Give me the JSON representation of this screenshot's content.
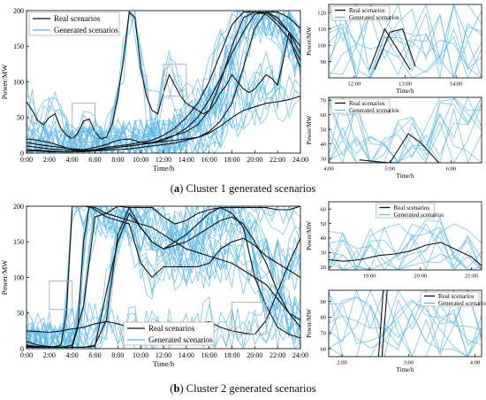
{
  "captions": [
    {
      "letter": "a",
      "text": " Cluster 1 generated scenarios"
    },
    {
      "letter": "b",
      "text": " Cluster 2 generated scenarios"
    }
  ],
  "colors": {
    "real": "#111111",
    "generated": "#5fb8e6",
    "zoom_box": "#b3b3b3",
    "axis": "#000000"
  },
  "chart_data": [
    {
      "id": "a-main",
      "type": "line",
      "xlabel": "Time/h",
      "ylabel": "Power/MW",
      "xlim": [
        0,
        24
      ],
      "ylim": [
        0,
        200
      ],
      "xticks": [
        0,
        2,
        4,
        6,
        8,
        10,
        12,
        14,
        16,
        18,
        20,
        22,
        24
      ],
      "xtick_labels": [
        "0:00",
        "2:00",
        "4:00",
        "6:00",
        "8:00",
        "10:00",
        "12:00",
        "14:00",
        "16:00",
        "18:00",
        "20:00",
        "22:00",
        "24:00"
      ],
      "yticks": [
        0,
        50,
        100,
        150,
        200
      ],
      "ytick_labels": [
        "0",
        "50",
        "100",
        "150",
        "200"
      ],
      "legend": {
        "position": "top-left",
        "entries": [
          "Real scenarios",
          "Generated scenarios"
        ]
      },
      "zoom_boxes": [
        {
          "x": [
            4,
            6
          ],
          "y": [
            15,
            70
          ]
        },
        {
          "x": [
            12,
            14
          ],
          "y": [
            80,
            125
          ]
        }
      ],
      "real_series": [
        {
          "x": [
            0,
            0.5,
            1,
            1.5,
            2,
            2.5,
            3,
            3.5,
            4,
            4.5,
            5,
            5.5,
            6,
            6.5,
            7,
            7.5,
            8,
            8.5,
            9,
            9.5,
            10,
            10.5,
            11,
            11.5,
            12,
            12.5,
            13,
            13.5,
            14,
            14.5,
            15,
            15.5,
            16,
            16.5,
            17,
            17.5,
            18,
            18.5,
            19,
            19.5,
            20,
            20.5,
            21,
            21.5,
            22,
            22.5,
            23,
            23.5,
            24
          ],
          "y": [
            72,
            60,
            45,
            40,
            50,
            55,
            35,
            25,
            20,
            28,
            45,
            48,
            30,
            20,
            22,
            40,
            80,
            130,
            198,
            190,
            120,
            80,
            60,
            55,
            85,
            110,
            95,
            80,
            70,
            65,
            60,
            55,
            60,
            70,
            85,
            95,
            110,
            100,
            90,
            85,
            90,
            100,
            110,
            105,
            95,
            130,
            170,
            140,
            120
          ]
        },
        {
          "x": [
            0,
            1,
            2,
            3,
            4,
            5,
            6,
            7,
            8,
            9,
            10,
            11,
            12,
            13,
            14,
            15,
            16,
            17,
            18,
            19,
            20,
            21,
            22,
            23,
            24
          ],
          "y": [
            15,
            12,
            10,
            8,
            6,
            5,
            8,
            12,
            18,
            20,
            15,
            14,
            20,
            25,
            30,
            40,
            60,
            100,
            150,
            190,
            198,
            198,
            185,
            170,
            150
          ]
        },
        {
          "x": [
            0,
            1,
            2,
            3,
            4,
            5,
            6,
            7,
            8,
            9,
            10,
            11,
            12,
            13,
            14,
            15,
            16,
            17,
            18,
            19,
            20,
            21,
            22,
            23,
            24
          ],
          "y": [
            5,
            4,
            3,
            2,
            2,
            3,
            4,
            6,
            8,
            10,
            12,
            15,
            18,
            25,
            35,
            50,
            75,
            105,
            140,
            170,
            195,
            198,
            190,
            170,
            140
          ]
        },
        {
          "x": [
            0,
            1,
            2,
            3,
            4,
            5,
            6,
            7,
            8,
            9,
            10,
            11,
            12,
            13,
            14,
            15,
            16,
            17,
            18,
            19,
            20,
            21,
            22,
            23,
            24
          ],
          "y": [
            10,
            8,
            6,
            5,
            4,
            4,
            5,
            6,
            8,
            10,
            12,
            14,
            16,
            18,
            20,
            22,
            30,
            45,
            70,
            120,
            175,
            198,
            198,
            190,
            175
          ]
        },
        {
          "x": [
            0,
            1,
            2,
            3,
            4,
            5,
            6,
            7,
            8,
            9,
            10,
            11,
            12,
            13,
            14,
            15,
            16,
            17,
            18,
            19,
            20,
            21,
            22,
            23,
            24
          ],
          "y": [
            3,
            3,
            2,
            2,
            2,
            2,
            3,
            4,
            5,
            6,
            8,
            10,
            12,
            14,
            18,
            22,
            28,
            38,
            50,
            60,
            65,
            70,
            72,
            75,
            80
          ]
        },
        {
          "x": [
            0,
            1,
            2,
            3,
            4,
            5,
            6,
            7,
            8,
            9,
            10,
            11,
            12,
            13,
            14,
            15,
            16,
            17,
            18,
            19,
            20,
            21,
            22,
            23,
            24
          ],
          "y": [
            20,
            18,
            15,
            10,
            5,
            4,
            5,
            8,
            10,
            12,
            15,
            18,
            25,
            35,
            50,
            70,
            100,
            140,
            180,
            198,
            198,
            195,
            180,
            160,
            130
          ]
        }
      ]
    },
    {
      "id": "a-zoom-1",
      "type": "line",
      "xlabel": "Time/h",
      "ylabel": "Power/MW",
      "xlim": [
        11.5,
        14.5
      ],
      "ylim": [
        80,
        125
      ],
      "xticks": [
        12,
        13,
        14
      ],
      "xtick_labels": [
        "12:00",
        "13:00",
        "14:00"
      ],
      "yticks": [
        90,
        100,
        110,
        120
      ],
      "ytick_labels": [
        "90",
        "100",
        "110",
        "120"
      ],
      "legend": {
        "position": "top-left",
        "entries": [
          "Real scenarios",
          "Generated scenarios"
        ]
      },
      "real_series": [
        {
          "x": [
            12.3,
            12.6,
            12.9,
            13.1
          ],
          "y": [
            85,
            110,
            95,
            85
          ]
        },
        {
          "x": [
            12.4,
            12.7,
            12.95,
            13.2
          ],
          "y": [
            85,
            108,
            110,
            87
          ]
        }
      ]
    },
    {
      "id": "a-zoom-2",
      "type": "line",
      "xlabel": "Time/h",
      "ylabel": "Power/MW",
      "xlim": [
        4,
        6.5
      ],
      "ylim": [
        27,
        72
      ],
      "xticks": [
        4,
        5,
        6
      ],
      "xtick_labels": [
        "4:00",
        "5:00",
        "6:00"
      ],
      "yticks": [
        30,
        40,
        50,
        60,
        70
      ],
      "ytick_labels": [
        "30",
        "40",
        "50",
        "60",
        "70"
      ],
      "legend": {
        "position": "top-left",
        "entries": [
          "Real scenarios",
          "Generated scenarios"
        ]
      },
      "real_series": [
        {
          "x": [
            4.5,
            5,
            5.3,
            5.5,
            5.8
          ],
          "y": [
            29,
            27,
            47,
            41,
            27
          ]
        }
      ]
    },
    {
      "id": "b-main",
      "type": "line",
      "xlabel": "Time/h",
      "ylabel": "Power/MW",
      "xlim": [
        0,
        24
      ],
      "ylim": [
        0,
        200
      ],
      "xticks": [
        0,
        2,
        4,
        6,
        8,
        10,
        12,
        14,
        16,
        18,
        20,
        22,
        24
      ],
      "xtick_labels": [
        "0:00",
        "2:00",
        "4:00",
        "6:00",
        "8:00",
        "10:00",
        "12:00",
        "14:00",
        "16:00",
        "18:00",
        "20:00",
        "22:00",
        "24:00"
      ],
      "yticks": [
        0,
        50,
        100,
        150,
        200
      ],
      "ytick_labels": [
        "0",
        "50",
        "100",
        "150",
        "200"
      ],
      "legend": {
        "position": "bottom-center",
        "entries": [
          "Real scenarios",
          "Generated scenarios"
        ]
      },
      "zoom_boxes": [
        {
          "x": [
            2,
            4
          ],
          "y": [
            55,
            95
          ]
        },
        {
          "x": [
            18,
            21
          ],
          "y": [
            20,
            65
          ]
        }
      ],
      "real_series": [
        {
          "x": [
            0,
            1,
            2,
            2.5,
            3,
            3.5,
            4,
            5,
            6,
            7,
            8,
            9,
            10,
            11,
            12,
            13,
            14,
            15,
            16,
            17,
            18,
            19,
            20,
            21,
            22,
            23,
            24
          ],
          "y": [
            5,
            3,
            2,
            3,
            5,
            50,
            200,
            200,
            198,
            190,
            185,
            180,
            175,
            170,
            160,
            150,
            140,
            135,
            130,
            125,
            120,
            110,
            100,
            90,
            70,
            50,
            40
          ]
        },
        {
          "x": [
            0,
            1,
            2,
            3,
            4,
            4.5,
            5,
            5.5,
            6,
            7,
            8,
            9,
            10,
            11,
            12,
            13,
            14,
            15,
            16,
            17,
            18,
            19,
            20,
            21,
            22,
            23,
            24
          ],
          "y": [
            10,
            5,
            3,
            2,
            2,
            30,
            150,
            200,
            195,
            185,
            180,
            175,
            120,
            100,
            115,
            115,
            115,
            115,
            120,
            140,
            150,
            155,
            145,
            130,
            120,
            110,
            100
          ]
        },
        {
          "x": [
            0,
            1,
            2,
            3,
            4,
            5,
            6,
            7,
            8,
            9,
            10,
            11,
            12,
            13,
            14,
            15,
            16,
            17,
            18,
            19,
            20,
            21,
            22,
            23,
            24
          ],
          "y": [
            2,
            2,
            2,
            2,
            2,
            2,
            5,
            40,
            160,
            198,
            198,
            198,
            185,
            175,
            180,
            190,
            195,
            198,
            190,
            170,
            100,
            60,
            30,
            20,
            15
          ]
        },
        {
          "x": [
            0,
            1,
            2,
            3,
            4,
            5,
            6,
            7,
            8,
            9,
            10,
            11,
            12,
            13,
            14,
            15,
            16,
            17,
            18,
            19,
            20,
            21,
            22,
            23,
            24
          ],
          "y": [
            3,
            2,
            2,
            2,
            5,
            60,
            185,
            190,
            200,
            198,
            170,
            150,
            140,
            145,
            150,
            160,
            170,
            180,
            185,
            175,
            150,
            120,
            80,
            50,
            30
          ]
        },
        {
          "x": [
            0,
            1,
            2,
            3,
            4,
            5,
            6,
            7,
            8,
            9,
            10,
            11,
            12,
            13,
            14,
            15,
            16,
            17,
            18,
            19,
            20,
            21,
            22,
            23,
            24
          ],
          "y": [
            4,
            3,
            2,
            2,
            2,
            2,
            3,
            80,
            150,
            190,
            170,
            150,
            140,
            150,
            160,
            175,
            190,
            198,
            198,
            198,
            198,
            198,
            195,
            195,
            200
          ]
        },
        {
          "x": [
            0,
            1,
            2,
            3,
            4,
            5,
            6,
            7,
            8,
            9,
            10,
            11,
            12,
            13,
            14,
            15,
            16,
            17,
            18,
            19,
            20,
            21,
            22,
            23,
            24
          ],
          "y": [
            25,
            24,
            23,
            25,
            28,
            30,
            35,
            38,
            35,
            30,
            25,
            22,
            20,
            25,
            30,
            35,
            38,
            30,
            25,
            22,
            20,
            40,
            80,
            120,
            155
          ]
        }
      ]
    },
    {
      "id": "b-zoom-1",
      "type": "line",
      "xlabel": "",
      "ylabel": "Power/MW",
      "xlim": [
        18.2,
        21.2
      ],
      "ylim": [
        18,
        65
      ],
      "xticks": [
        19,
        20,
        21
      ],
      "xtick_labels": [
        "19:00",
        "20:00",
        "21:00"
      ],
      "yticks": [
        20,
        30,
        40,
        50,
        60
      ],
      "ytick_labels": [
        "20",
        "30",
        "40",
        "50",
        "60"
      ],
      "legend": {
        "position": "top-center",
        "entries": [
          "Real scenarios",
          "Generated scenarios"
        ]
      },
      "real_series": [
        {
          "x": [
            18.2,
            18.5,
            18.8,
            19.2,
            19.5,
            19.8,
            20.1,
            20.4,
            20.7,
            21,
            21.2
          ],
          "y": [
            25,
            24,
            25,
            28,
            29,
            31,
            35,
            37,
            32,
            27,
            21
          ]
        }
      ]
    },
    {
      "id": "b-zoom-2",
      "type": "line",
      "xlabel": "Time/h",
      "ylabel": "Power/MW",
      "xlim": [
        1.8,
        4.1
      ],
      "ylim": [
        55,
        97
      ],
      "xticks": [
        2,
        3,
        4
      ],
      "xtick_labels": [
        "2:00",
        "3:00",
        "4:00"
      ],
      "yticks": [
        60,
        70,
        80,
        90
      ],
      "ytick_labels": [
        "60",
        "70",
        "80",
        "90"
      ],
      "legend": {
        "position": "top-right",
        "entries": [
          "Real scenarios",
          "Generated scenarios"
        ]
      },
      "real_series": [
        {
          "x": [
            2.55,
            2.62
          ],
          "y": [
            55,
            97
          ]
        },
        {
          "x": [
            2.6,
            2.68
          ],
          "y": [
            55,
            97
          ]
        }
      ]
    }
  ]
}
